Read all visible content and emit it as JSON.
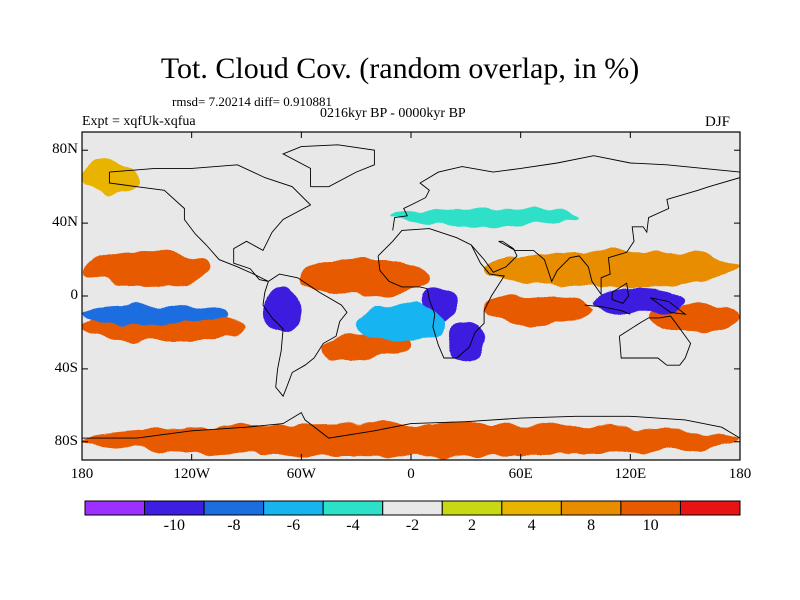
{
  "figure": {
    "title": "Tot. Cloud Cov. (random overlap, in %)",
    "stats_line": "rmsd= 7.20214 diff= 0.910881",
    "period_line": "0216kyr BP - 0000kyr BP",
    "experiment_label": "Expt = xqfUk-xqfua",
    "season_label": "DJF"
  },
  "map": {
    "projection": "cylindrical-equidistant",
    "lon_range": [
      -180,
      180
    ],
    "lat_range": [
      -90,
      90
    ],
    "y_ticks": [
      {
        "label": "80N",
        "lat": 80
      },
      {
        "label": "40N",
        "lat": 40
      },
      {
        "label": "0",
        "lat": 0
      },
      {
        "label": "40S",
        "lat": -40
      },
      {
        "label": "80S",
        "lat": -80
      }
    ],
    "x_ticks": [
      {
        "label": "180",
        "lon": -180
      },
      {
        "label": "120W",
        "lon": -120
      },
      {
        "label": "60W",
        "lon": -60
      },
      {
        "label": "0",
        "lon": 0
      },
      {
        "label": "60E",
        "lon": 60
      },
      {
        "label": "120E",
        "lon": 120
      },
      {
        "label": "180",
        "lon": 180
      }
    ]
  },
  "colorbar": {
    "colors": [
      "#9b30ff",
      "#3c1fe0",
      "#1c6ee0",
      "#19b4f0",
      "#2de0c8",
      "#e8e8e8",
      "#c8d814",
      "#e8b400",
      "#e88c00",
      "#e85a00",
      "#e81414"
    ],
    "labels": [
      {
        "text": "-10",
        "boundary": 1
      },
      {
        "text": "-8",
        "boundary": 2
      },
      {
        "text": "-6",
        "boundary": 3
      },
      {
        "text": "-4",
        "boundary": 4
      },
      {
        "text": "-2",
        "boundary": 5
      },
      {
        "text": "2",
        "boundary": 6
      },
      {
        "text": "4",
        "boundary": 7
      },
      {
        "text": "8",
        "boundary": 8
      },
      {
        "text": "10",
        "boundary": 9
      }
    ]
  },
  "chart_data": {
    "type": "heatmap",
    "title": "Tot. Cloud Cov. (random overlap, in %)",
    "units": "%",
    "x_axis": "longitude",
    "y_axis": "latitude",
    "xlim": [
      -180,
      180
    ],
    "ylim": [
      -90,
      90
    ],
    "levels": [
      -12,
      -10,
      -8,
      -6,
      -4,
      -2,
      2,
      4,
      8,
      10,
      12
    ],
    "regions": [
      {
        "lon": [
          -180,
          -110
        ],
        "lat": [
          5,
          25
        ],
        "level": 10
      },
      {
        "lon": [
          -60,
          10
        ],
        "lat": [
          0,
          20
        ],
        "level": 10
      },
      {
        "lon": [
          40,
          180
        ],
        "lat": [
          5,
          25
        ],
        "level": 8
      },
      {
        "lon": [
          -180,
          -90
        ],
        "lat": [
          -25,
          -8
        ],
        "level": 10
      },
      {
        "lon": [
          -50,
          0
        ],
        "lat": [
          -35,
          -20
        ],
        "level": 10
      },
      {
        "lon": [
          40,
          100
        ],
        "lat": [
          -15,
          0
        ],
        "level": 10
      },
      {
        "lon": [
          130,
          180
        ],
        "lat": [
          -20,
          -5
        ],
        "level": 10
      },
      {
        "lon": [
          -80,
          -60
        ],
        "lat": [
          -20,
          5
        ],
        "level": -10
      },
      {
        "lon": [
          5,
          25
        ],
        "lat": [
          -15,
          5
        ],
        "level": -10
      },
      {
        "lon": [
          20,
          40
        ],
        "lat": [
          -35,
          -15
        ],
        "level": -10
      },
      {
        "lon": [
          100,
          150
        ],
        "lat": [
          -10,
          5
        ],
        "level": -10
      },
      {
        "lon": [
          -180,
          -100
        ],
        "lat": [
          -15,
          -5
        ],
        "level": -8
      },
      {
        "lon": [
          -30,
          20
        ],
        "lat": [
          -25,
          -5
        ],
        "level": -6
      },
      {
        "lon": [
          -10,
          90
        ],
        "lat": [
          38,
          48
        ],
        "level": -4
      },
      {
        "lon": [
          -180,
          -150
        ],
        "lat": [
          55,
          75
        ],
        "level": 4
      },
      {
        "lon": [
          -180,
          180
        ],
        "lat": [
          -88,
          -70
        ],
        "level": 10
      }
    ]
  }
}
